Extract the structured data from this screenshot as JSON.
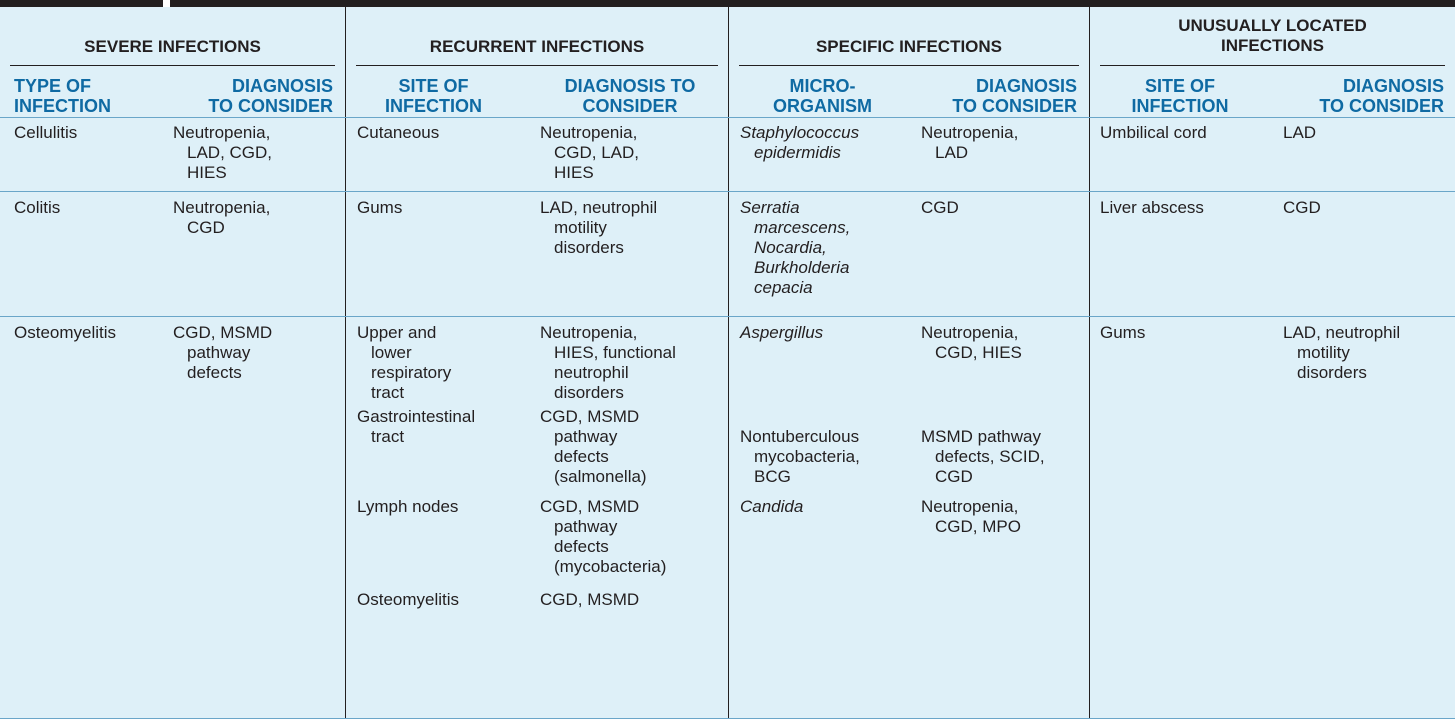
{
  "groups": [
    {
      "title": "SEVERE INFECTIONS"
    },
    {
      "title": "RECURRENT INFECTIONS"
    },
    {
      "title": "SPECIFIC INFECTIONS"
    },
    {
      "title_line1": "UNUSUALLY LOCATED",
      "title_line2": "INFECTIONS"
    }
  ],
  "subheaders": {
    "severe": {
      "col1": [
        "TYPE OF",
        "INFECTION"
      ],
      "col2": [
        "DIAGNOSIS",
        "TO CONSIDER"
      ]
    },
    "recurrent": {
      "col1": [
        "SITE OF",
        "INFECTION"
      ],
      "col2": [
        "DIAGNOSIS TO",
        "CONSIDER"
      ]
    },
    "specific": {
      "col1": [
        "MICRO-",
        "ORGANISM"
      ],
      "col2": [
        "DIAGNOSIS",
        "TO CONSIDER"
      ]
    },
    "unusual": {
      "col1": [
        "SITE OF",
        "INFECTION"
      ],
      "col2": [
        "DIAGNOSIS",
        "TO CONSIDER"
      ]
    }
  },
  "severe": [
    {
      "type": "Cellulitis",
      "dx": [
        "Neutropenia,",
        "LAD, CGD,",
        "HIES"
      ]
    },
    {
      "type": "Colitis",
      "dx": [
        "Neutropenia,",
        "CGD"
      ]
    },
    {
      "type": "Osteomyelitis",
      "dx": [
        "CGD, MSMD",
        "pathway",
        "defects"
      ]
    }
  ],
  "recurrent": [
    {
      "site": [
        "Cutaneous"
      ],
      "dx": [
        "Neutropenia,",
        "CGD, LAD,",
        "HIES"
      ]
    },
    {
      "site": [
        "Gums"
      ],
      "dx": [
        "LAD, neutrophil",
        "motility",
        "disorders"
      ]
    },
    {
      "site": [
        "Upper and",
        "lower",
        "respiratory",
        "tract"
      ],
      "dx": [
        "Neutropenia,",
        "HIES, functional",
        "neutrophil",
        "disorders"
      ]
    },
    {
      "site": [
        "Gastrointestinal",
        "tract"
      ],
      "dx": [
        "CGD, MSMD",
        "pathway",
        "defects",
        "(salmonella)"
      ]
    },
    {
      "site": [
        "Lymph nodes"
      ],
      "dx": [
        "CGD, MSMD",
        "pathway",
        "defects",
        "(mycobacteria)"
      ]
    },
    {
      "site": [
        "Osteomyelitis"
      ],
      "dx": [
        "CGD, MSMD"
      ]
    }
  ],
  "specific": [
    {
      "organism": [
        "Staphylococcus",
        "epidermidis"
      ],
      "dx": [
        "Neutropenia,",
        "LAD"
      ]
    },
    {
      "organism": [
        "Serratia",
        "marcescens,",
        "Nocardia,",
        "Burkholderia",
        "cepacia"
      ],
      "dx": [
        "CGD"
      ]
    },
    {
      "organism": [
        "Aspergillus"
      ],
      "dx": [
        "Neutropenia,",
        "CGD, HIES"
      ]
    },
    {
      "organism": [
        "Nontuberculous",
        "mycobacteria,",
        "BCG"
      ],
      "dx": [
        "MSMD pathway",
        "defects, SCID,",
        "CGD"
      ]
    },
    {
      "organism": [
        "Candida"
      ],
      "dx": [
        "Neutropenia,",
        "CGD, MPO"
      ]
    }
  ],
  "unusual": [
    {
      "site": "Umbilical cord",
      "dx": [
        "LAD"
      ]
    },
    {
      "site": "Liver abscess",
      "dx": [
        "CGD"
      ]
    },
    {
      "site": "Gums",
      "dx": [
        "LAD, neutrophil",
        "motility",
        "disorders"
      ]
    }
  ],
  "colors": {
    "header_text": "#0f6aa3",
    "background": "#def0f8",
    "rule": "#231f20",
    "row_separator": "#6aa6c9"
  }
}
